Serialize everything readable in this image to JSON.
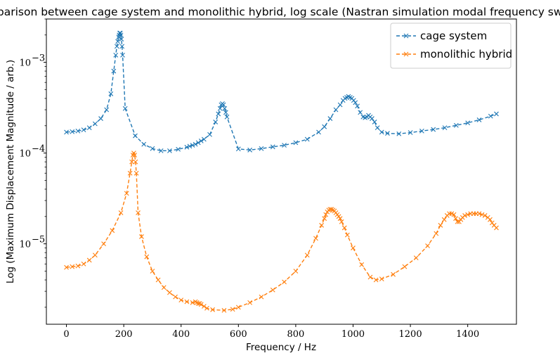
{
  "chart_data": {
    "type": "line",
    "title": "Comparison between cage system and monolithic hybrid, log scale (Nastran simulation modal frequency sweep)",
    "xlabel": "Frequency / Hz",
    "ylabel": "Log (Maximum Displacement Magnitude / arb.)",
    "xscale": "linear",
    "yscale": "log",
    "xlim": [
      -70,
      1570
    ],
    "ylim": [
      1.3e-06,
      0.003
    ],
    "xticks": [
      0,
      200,
      400,
      600,
      800,
      1000,
      1200,
      1400
    ],
    "xtick_labels": [
      "0",
      "200",
      "400",
      "600",
      "800",
      "1000",
      "1200",
      "1400"
    ],
    "yticks": [
      1e-05,
      0.0001,
      0.001
    ],
    "ytick_labels": [
      "10",
      "10",
      "10"
    ],
    "ytick_exponents": [
      "−5",
      "−4",
      "−3"
    ],
    "grid": false,
    "legend_position": "top-right",
    "marker": "x",
    "line_style": "dashed",
    "series": [
      {
        "name": "cage system",
        "color": "#1f77b4",
        "x": [
          0,
          20,
          40,
          60,
          80,
          100,
          120,
          140,
          155,
          165,
          172,
          176,
          179,
          182,
          184,
          186,
          188,
          190,
          192,
          194,
          196,
          205,
          240,
          270,
          300,
          330,
          360,
          390,
          420,
          430,
          440,
          450,
          460,
          470,
          480,
          500,
          520,
          530,
          536,
          540,
          544,
          548,
          552,
          556,
          560,
          600,
          640,
          680,
          720,
          760,
          800,
          840,
          880,
          900,
          920,
          940,
          955,
          965,
          972,
          978,
          984,
          990,
          996,
          1002,
          1008,
          1015,
          1025,
          1035,
          1042,
          1048,
          1054,
          1060,
          1066,
          1075,
          1085,
          1100,
          1120,
          1160,
          1200,
          1240,
          1280,
          1320,
          1360,
          1400,
          1440,
          1480,
          1500
        ],
        "y": [
          0.00017,
          0.000172,
          0.000175,
          0.00018,
          0.00019,
          0.00021,
          0.00024,
          0.0003,
          0.00045,
          0.0008,
          0.0012,
          0.0015,
          0.0017,
          0.0019,
          0.002,
          0.0021,
          0.0021,
          0.002,
          0.0018,
          0.0015,
          0.0012,
          0.00031,
          0.000155,
          0.000125,
          0.000112,
          0.000106,
          0.000106,
          0.00011,
          0.000116,
          0.000119,
          0.000122,
          0.000125,
          0.00013,
          0.000136,
          0.000142,
          0.00016,
          0.00022,
          0.00027,
          0.00031,
          0.00034,
          0.00035,
          0.00034,
          0.00031,
          0.00028,
          0.00025,
          0.000111,
          0.000108,
          0.000112,
          0.000117,
          0.000122,
          0.00013,
          0.000142,
          0.00017,
          0.000195,
          0.00024,
          0.0003,
          0.00034,
          0.00038,
          0.0004,
          0.00041,
          0.00042,
          0.00041,
          0.0004,
          0.00038,
          0.00036,
          0.00033,
          0.00028,
          0.00025,
          0.000245,
          0.00025,
          0.00026,
          0.00025,
          0.00024,
          0.00022,
          0.00019,
          0.00017,
          0.000165,
          0.000163,
          0.000168,
          0.000175,
          0.000182,
          0.00019,
          0.000202,
          0.000215,
          0.000232,
          0.000255,
          0.00027
        ]
      },
      {
        "name": "monolithic hybrid",
        "color": "#ff7f0e",
        "x": [
          0,
          20,
          40,
          60,
          80,
          100,
          130,
          160,
          190,
          210,
          222,
          228,
          232,
          235,
          238,
          241,
          244,
          250,
          262,
          280,
          300,
          320,
          340,
          360,
          380,
          400,
          420,
          440,
          450,
          455,
          460,
          465,
          470,
          480,
          490,
          510,
          550,
          580,
          600,
          640,
          680,
          720,
          760,
          800,
          840,
          870,
          890,
          900,
          905,
          910,
          915,
          920,
          925,
          930,
          935,
          940,
          945,
          950,
          955,
          960,
          970,
          980,
          1000,
          1030,
          1060,
          1080,
          1100,
          1140,
          1180,
          1220,
          1260,
          1290,
          1305,
          1318,
          1328,
          1336,
          1344,
          1352,
          1358,
          1364,
          1370,
          1376,
          1382,
          1390,
          1400,
          1410,
          1420,
          1430,
          1440,
          1450,
          1460,
          1470,
          1478,
          1485,
          1492,
          1500
        ],
        "y": [
          5.5e-06,
          5.6e-06,
          5.7e-06,
          6e-06,
          6.6e-06,
          7.5e-06,
          1e-05,
          1.4e-05,
          2.2e-05,
          3.6e-05,
          6e-05,
          8e-05,
          9.5e-05,
          0.0001,
          9.5e-05,
          8e-05,
          6e-05,
          2.2e-05,
          1.2e-05,
          7.2e-06,
          5e-06,
          4e-06,
          3.3e-06,
          2.9e-06,
          2.6e-06,
          2.4e-06,
          2.3e-06,
          2.25e-06,
          2.3e-06,
          2.25e-06,
          2.2e-06,
          2.2e-06,
          2.15e-06,
          2.05e-06,
          1.95e-06,
          1.88e-06,
          1.85e-06,
          1.9e-06,
          2e-06,
          2.25e-06,
          2.6e-06,
          3.1e-06,
          3.8e-06,
          5e-06,
          7.5e-06,
          1.15e-05,
          1.6e-05,
          1.9e-05,
          2.1e-05,
          2.25e-05,
          2.35e-05,
          2.4e-05,
          2.4e-05,
          2.35e-05,
          2.3e-05,
          2.2e-05,
          2.1e-05,
          2e-05,
          1.9e-05,
          1.75e-05,
          1.5e-05,
          1.25e-05,
          9e-06,
          5.9e-06,
          4.3e-06,
          4e-06,
          4.1e-06,
          4.6e-06,
          5.6e-06,
          7e-06,
          9.5e-06,
          1.3e-05,
          1.6e-05,
          1.85e-05,
          2.05e-05,
          2.15e-05,
          2.15e-05,
          2.1e-05,
          1.9e-05,
          1.75e-05,
          1.75e-05,
          1.85e-05,
          1.95e-05,
          2.05e-05,
          2.1e-05,
          2.15e-05,
          2.15e-05,
          2.15e-05,
          2.15e-05,
          2.1e-05,
          2.05e-05,
          1.95e-05,
          1.85e-05,
          1.7e-05,
          1.6e-05,
          1.5e-05
        ]
      }
    ]
  }
}
